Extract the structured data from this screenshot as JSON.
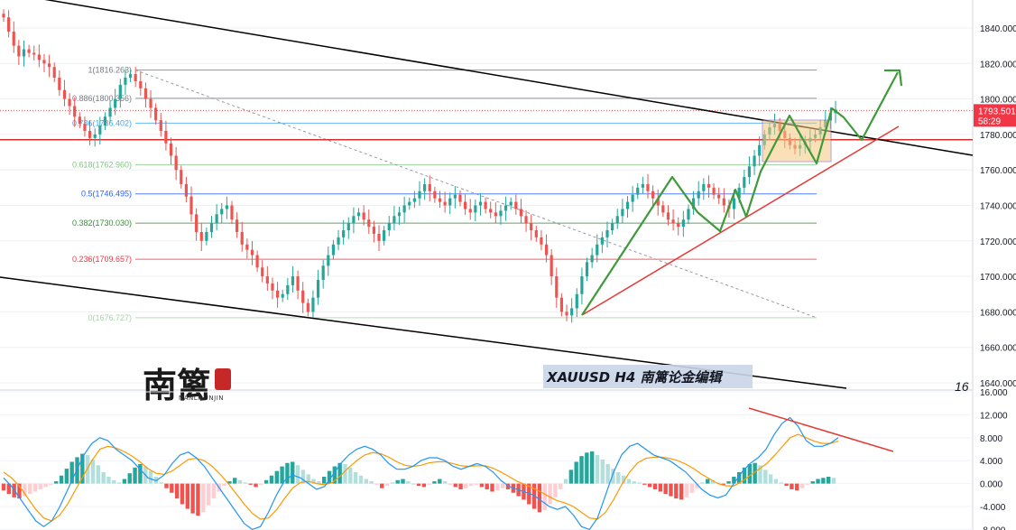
{
  "chart_data": [
    {
      "type": "candlestick",
      "symbol": "XAUUSD",
      "timeframe": "H4",
      "watermark_text": "XAUUSD  H4  南篱论金编辑",
      "logo_text": "南篱",
      "logo_subtext": "NANLILUNJIN",
      "stray_text": "16",
      "ylim": [
        1630,
        1850
      ],
      "y_ticks": [
        "1840.000",
        "1820.000",
        "1800.000",
        "1780.000",
        "1760.000",
        "1740.000",
        "1720.000",
        "1700.000",
        "1680.000",
        "1660.000",
        "1640.000"
      ],
      "y_tick_values": [
        1840,
        1820,
        1800,
        1780,
        1760,
        1740,
        1720,
        1700,
        1680,
        1660,
        1640
      ],
      "current_price": {
        "label": "1793.501",
        "countdown": "58:29",
        "value": 1793.5,
        "color": "#f23645"
      },
      "fibonacci": [
        {
          "label": "1(1816.263)",
          "value": 1816.263,
          "color": "#787b86"
        },
        {
          "label": "0.886(1800.356)",
          "value": 1800.356,
          "color": "#787b86"
        },
        {
          "label": "0.786(1786.402)",
          "value": 1786.402,
          "color": "#42a5f5"
        },
        {
          "label": "0.618(1762.960)",
          "value": 1762.96,
          "color": "#81c784"
        },
        {
          "label": "0.5(1746.495)",
          "value": 1746.495,
          "color": "#2962ff"
        },
        {
          "label": "0.382(1730.030)",
          "value": 1730.03,
          "color": "#388e3c"
        },
        {
          "label": "0.236(1709.657)",
          "value": 1709.657,
          "color": "#f23645"
        },
        {
          "label": "0(1676.727)",
          "value": 1676.727,
          "color": "#a5d6a7"
        }
      ],
      "resistance_level": 1777,
      "colors": {
        "up": "#26a69a",
        "down": "#ef5350",
        "channel": "#000000",
        "trend": "#e53935",
        "projection": "#3e9a3a",
        "zone": "#f5c77e"
      },
      "candle_closes": [
        1846,
        1838,
        1830,
        1824,
        1828,
        1826,
        1825,
        1822,
        1820,
        1818,
        1812,
        1805,
        1800,
        1796,
        1790,
        1786,
        1782,
        1778,
        1780,
        1785,
        1790,
        1795,
        1800,
        1808,
        1812,
        1814,
        1810,
        1806,
        1800,
        1795,
        1788,
        1782,
        1775,
        1768,
        1760,
        1752,
        1745,
        1735,
        1725,
        1720,
        1725,
        1730,
        1735,
        1738,
        1740,
        1732,
        1725,
        1718,
        1715,
        1712,
        1705,
        1700,
        1696,
        1692,
        1688,
        1690,
        1695,
        1700,
        1692,
        1685,
        1680,
        1688,
        1698,
        1706,
        1712,
        1718,
        1722,
        1726,
        1730,
        1734,
        1736,
        1732,
        1728,
        1724,
        1720,
        1726,
        1730,
        1734,
        1736,
        1740,
        1742,
        1744,
        1748,
        1752,
        1748,
        1744,
        1742,
        1740,
        1744,
        1746,
        1742,
        1738,
        1736,
        1740,
        1742,
        1738,
        1736,
        1734,
        1737,
        1740,
        1742,
        1738,
        1734,
        1730,
        1726,
        1722,
        1718,
        1712,
        1700,
        1688,
        1680,
        1678,
        1682,
        1690,
        1700,
        1708,
        1712,
        1718,
        1722,
        1726,
        1730,
        1734,
        1738,
        1742,
        1746,
        1750,
        1752,
        1748,
        1744,
        1740,
        1736,
        1732,
        1730,
        1728,
        1732,
        1738,
        1744,
        1748,
        1752,
        1750,
        1746,
        1744,
        1740,
        1738,
        1744,
        1750,
        1756,
        1762,
        1768,
        1774,
        1780,
        1784,
        1786,
        1782,
        1778,
        1774,
        1772,
        1774,
        1776,
        1778,
        1780,
        1784,
        1788,
        1792,
        1794
      ],
      "macd": {
        "ylim": [
          -8,
          16
        ],
        "y_ticks": [
          "16.000",
          "12.000",
          "8.000",
          "4.000",
          "0.000",
          "-4.000",
          "-8.000"
        ],
        "y_tick_values": [
          16,
          12,
          8,
          4,
          0,
          -4,
          -8
        ],
        "histogram": [
          -1.2,
          -1.8,
          -2.4,
          -2.6,
          -2.2,
          -1.8,
          -1.4,
          -1.0,
          -0.6,
          -0.2,
          0.4,
          1.4,
          2.6,
          3.8,
          4.6,
          5.2,
          5.0,
          4.2,
          3.2,
          2.0,
          1.2,
          0.6,
          0.2,
          0.8,
          1.8,
          2.8,
          3.4,
          3.0,
          2.2,
          1.2,
          0.2,
          -0.8,
          -1.6,
          -2.6,
          -3.6,
          -4.4,
          -5.2,
          -5.6,
          -5.0,
          -3.8,
          -2.6,
          -1.4,
          -0.4,
          0.4,
          1.0,
          0.6,
          0.2,
          -0.2,
          -0.6,
          -0.2,
          0.6,
          1.4,
          2.2,
          3.0,
          3.6,
          3.8,
          3.2,
          2.4,
          1.6,
          0.8,
          0.4,
          1.2,
          2.2,
          3.0,
          3.6,
          3.4,
          2.8,
          2.0,
          1.4,
          0.8,
          0.4,
          -0.2,
          -0.8,
          -0.4,
          0.2,
          0.6,
          0.8,
          0.4,
          0.0,
          -0.4,
          -0.6,
          -0.2,
          0.4,
          0.8,
          0.4,
          -0.2,
          -0.6,
          -1.0,
          -0.8,
          -0.4,
          -0.2,
          -0.6,
          -1.0,
          -1.4,
          -1.2,
          -0.8,
          -1.0,
          -1.6,
          -2.2,
          -2.8,
          -3.6,
          -4.4,
          -5.0,
          -4.6,
          -3.6,
          -2.4,
          -1.0,
          0.8,
          2.4,
          3.8,
          4.8,
          5.4,
          5.6,
          5.0,
          4.2,
          3.4,
          2.6,
          2.0,
          1.4,
          0.8,
          0.4,
          0.2,
          -0.2,
          -0.6,
          -1.0,
          -1.4,
          -1.8,
          -2.2,
          -2.6,
          -2.8,
          -2.4,
          -1.6,
          -0.8,
          0.2,
          0.8,
          0.6,
          0.2,
          -0.2,
          0.4,
          1.2,
          2.0,
          2.8,
          3.4,
          3.6,
          3.2,
          2.4,
          1.6,
          0.8,
          0.2,
          -0.4,
          -1.0,
          -1.2,
          -0.8,
          -0.2,
          0.4,
          0.8,
          1.0,
          1.2,
          1.0
        ],
        "macd_line": [
          1.0,
          -0.5,
          -2.5,
          -4.5,
          -6.5,
          -7.5,
          -6.5,
          -4.0,
          -1.0,
          2.0,
          5.0,
          7.0,
          8.0,
          7.5,
          6.0,
          5.0,
          4.0,
          2.5,
          1.0,
          0.5,
          1.5,
          3.5,
          5.0,
          5.5,
          4.5,
          3.0,
          1.0,
          -1.0,
          -3.0,
          -5.0,
          -7.0,
          -8.0,
          -7.5,
          -5.0,
          -2.0,
          0.5,
          1.5,
          1.0,
          0.0,
          -1.0,
          -0.5,
          1.5,
          3.5,
          5.0,
          6.0,
          6.5,
          6.0,
          5.0,
          3.5,
          2.5,
          2.5,
          3.0,
          4.0,
          4.5,
          4.5,
          4.0,
          3.0,
          2.5,
          3.0,
          3.5,
          3.0,
          2.0,
          0.5,
          -0.5,
          -1.0,
          -1.5,
          -2.0,
          -3.0,
          -4.0,
          -4.5,
          -4.0,
          -5.5,
          -7.5,
          -8.0,
          -6.0,
          -2.0,
          2.0,
          5.0,
          6.5,
          7.0,
          6.0,
          5.0,
          4.5,
          4.0,
          3.0,
          2.0,
          0.5,
          -1.0,
          -2.0,
          -2.5,
          -2.0,
          0.0,
          2.0,
          3.5,
          4.5,
          6.0,
          8.5,
          10.5,
          11.5,
          10.0,
          7.5,
          6.5,
          6.5,
          7.0,
          8.0
        ],
        "signal_line": [
          2.0,
          1.0,
          -0.5,
          -2.5,
          -4.5,
          -6.0,
          -6.5,
          -5.5,
          -3.5,
          -1.0,
          1.5,
          4.0,
          6.0,
          6.5,
          6.2,
          5.6,
          4.8,
          3.8,
          2.6,
          1.8,
          1.6,
          2.2,
          3.2,
          4.2,
          4.4,
          4.0,
          3.0,
          1.6,
          0.0,
          -1.8,
          -3.6,
          -5.2,
          -6.2,
          -6.0,
          -4.6,
          -2.6,
          -0.8,
          0.2,
          0.4,
          0.0,
          -0.2,
          0.2,
          1.4,
          2.8,
          4.0,
          5.0,
          5.4,
          5.2,
          4.6,
          3.8,
          3.2,
          3.0,
          3.2,
          3.6,
          3.8,
          3.8,
          3.5,
          3.1,
          3.0,
          3.1,
          3.1,
          2.7,
          2.0,
          1.2,
          0.4,
          -0.2,
          -0.8,
          -1.5,
          -2.3,
          -3.0,
          -3.4,
          -4.0,
          -5.0,
          -6.0,
          -6.2,
          -5.0,
          -2.8,
          -0.2,
          2.0,
          3.6,
          4.4,
          4.6,
          4.6,
          4.4,
          4.0,
          3.4,
          2.6,
          1.6,
          0.8,
          0.0,
          -0.4,
          -0.4,
          0.4,
          1.4,
          2.4,
          3.4,
          4.8,
          6.4,
          8.0,
          8.6,
          8.0,
          7.4,
          7.0,
          7.0,
          7.4
        ]
      }
    }
  ]
}
